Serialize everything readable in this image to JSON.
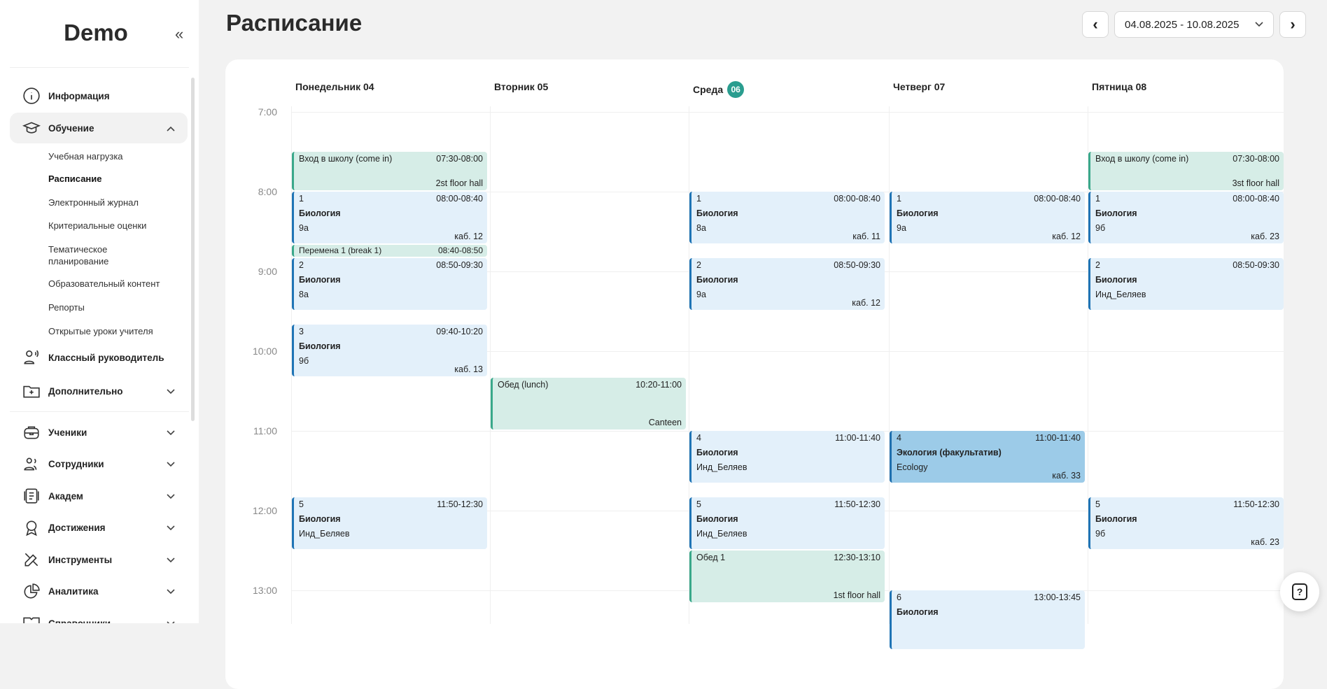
{
  "sidebar": {
    "logo": "Demo",
    "collapse_icon": "«",
    "items_top": [
      {
        "label": "Информация",
        "icon": "info-icon"
      },
      {
        "label": "Обучение",
        "icon": "graduation-cap-icon",
        "expanded": true
      },
      {
        "label": "Классный руководитель",
        "icon": "class-teacher-icon"
      },
      {
        "label": "Дополнительно",
        "icon": "folder-plus-icon"
      }
    ],
    "sub_items": [
      "Учебная нагрузка",
      "Расписание",
      "Электронный журнал",
      "Критериальные оценки",
      "Тематическое планирование",
      "Образовательный контент",
      "Репорты",
      "Открытые уроки учителя"
    ],
    "items_bottom": [
      {
        "label": "Ученики",
        "icon": "backpack-icon"
      },
      {
        "label": "Сотрудники",
        "icon": "staff-icon"
      },
      {
        "label": "Академ",
        "icon": "document-icon"
      },
      {
        "label": "Достижения",
        "icon": "award-icon"
      },
      {
        "label": "Инструменты",
        "icon": "tools-icon"
      },
      {
        "label": "Аналитика",
        "icon": "pie-chart-icon"
      },
      {
        "label": "Справочники",
        "icon": "book-icon"
      }
    ]
  },
  "header": {
    "title": "Расписание",
    "date_range": "04.08.2025 - 10.08.2025",
    "prev": "‹",
    "next": "›"
  },
  "days": [
    {
      "label": "Понедельник 04"
    },
    {
      "label": "Вторник 05"
    },
    {
      "label": "Среда",
      "badge": "06"
    },
    {
      "label": "Четверг 07"
    },
    {
      "label": "Пятница 08"
    }
  ],
  "times": [
    "7:00",
    "8:00",
    "9:00",
    "10:00",
    "11:00",
    "12:00",
    "13:00"
  ],
  "events": [
    {
      "day": 0,
      "type": "green",
      "num": "Вход в школу (come in)",
      "time": "07:30-08:00",
      "start": "07:30",
      "end": "08:00",
      "room": "2st floor hall"
    },
    {
      "day": 0,
      "type": "blue",
      "num": "1",
      "time": "08:00-08:40",
      "start": "08:00",
      "end": "08:40",
      "subject": "Биология",
      "cls": "9а",
      "room": "каб. 12"
    },
    {
      "day": 0,
      "type": "green",
      "num": "Перемена 1 (break 1)",
      "time": "08:40-08:50",
      "start": "08:40",
      "end": "08:50"
    },
    {
      "day": 0,
      "type": "blue",
      "num": "2",
      "time": "08:50-09:30",
      "start": "08:50",
      "end": "09:30",
      "subject": "Биология",
      "cls": "8а"
    },
    {
      "day": 0,
      "type": "blue",
      "num": "3",
      "time": "09:40-10:20",
      "start": "09:40",
      "end": "10:20",
      "subject": "Биология",
      "cls": "9б",
      "room": "каб. 13"
    },
    {
      "day": 0,
      "type": "blue",
      "num": "5",
      "time": "11:50-12:30",
      "start": "11:50",
      "end": "12:30",
      "subject": "Биология",
      "cls": "Инд_Беляев"
    },
    {
      "day": 1,
      "type": "green",
      "num": "Обед (lunch)",
      "time": "10:20-11:00",
      "start": "10:20",
      "end": "11:00",
      "room": "Canteen"
    },
    {
      "day": 2,
      "type": "blue",
      "num": "1",
      "time": "08:00-08:40",
      "start": "08:00",
      "end": "08:40",
      "subject": "Биология",
      "cls": "8а",
      "room": "каб. 11"
    },
    {
      "day": 2,
      "type": "blue",
      "num": "2",
      "time": "08:50-09:30",
      "start": "08:50",
      "end": "09:30",
      "subject": "Биология",
      "cls": "9а",
      "room": "каб. 12"
    },
    {
      "day": 2,
      "type": "blue",
      "num": "4",
      "time": "11:00-11:40",
      "start": "11:00",
      "end": "11:40",
      "subject": "Биология",
      "cls": "Инд_Беляев"
    },
    {
      "day": 2,
      "type": "blue",
      "num": "5",
      "time": "11:50-12:30",
      "start": "11:50",
      "end": "12:30",
      "subject": "Биология",
      "cls": "Инд_Беляев"
    },
    {
      "day": 2,
      "type": "green",
      "num": "Обед 1",
      "time": "12:30-13:10",
      "start": "12:30",
      "end": "13:10",
      "room": "1st floor hall"
    },
    {
      "day": 3,
      "type": "blue",
      "num": "1",
      "time": "08:00-08:40",
      "start": "08:00",
      "end": "08:40",
      "subject": "Биология",
      "cls": "9а",
      "room": "каб. 12"
    },
    {
      "day": 3,
      "type": "dark",
      "num": "4",
      "time": "11:00-11:40",
      "start": "11:00",
      "end": "11:40",
      "subject": "Экология (факультатив)",
      "cls": "Ecology",
      "room": "каб. 33"
    },
    {
      "day": 3,
      "type": "blue",
      "num": "6",
      "time": "13:00-13:45",
      "start": "13:00",
      "end": "13:45",
      "subject": "Биология"
    },
    {
      "day": 4,
      "type": "green",
      "num": "Вход в школу (come in)",
      "time": "07:30-08:00",
      "start": "07:30",
      "end": "08:00",
      "room": "3st floor hall"
    },
    {
      "day": 4,
      "type": "blue",
      "num": "1",
      "time": "08:00-08:40",
      "start": "08:00",
      "end": "08:40",
      "subject": "Биология",
      "cls": "9б",
      "room": "каб. 23"
    },
    {
      "day": 4,
      "type": "blue",
      "num": "2",
      "time": "08:50-09:30",
      "start": "08:50",
      "end": "09:30",
      "subject": "Биология",
      "cls": "Инд_Беляев"
    },
    {
      "day": 4,
      "type": "blue",
      "num": "5",
      "time": "11:50-12:30",
      "start": "11:50",
      "end": "12:30",
      "subject": "Биология",
      "cls": "9б",
      "room": "каб. 23"
    }
  ],
  "help": {
    "label": "?"
  }
}
